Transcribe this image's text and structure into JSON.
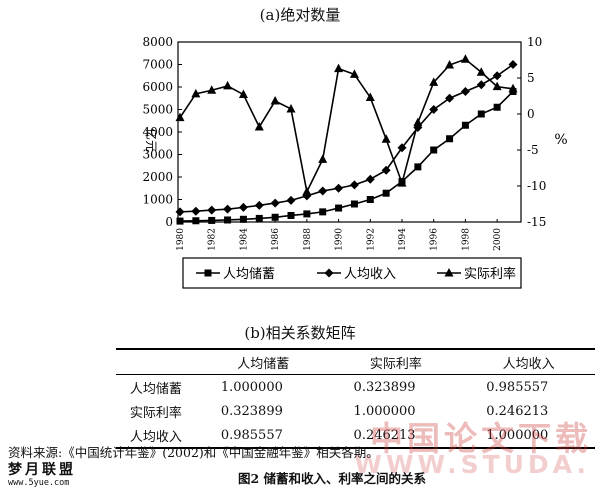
{
  "chart_data": [
    {
      "type": "line",
      "title": "(a)绝对数量",
      "ylabel_left": "亿元",
      "ylabel_right": "%",
      "x": [
        1980,
        1981,
        1982,
        1983,
        1984,
        1985,
        1986,
        1987,
        1988,
        1989,
        1990,
        1991,
        1992,
        1993,
        1994,
        1995,
        1996,
        1997,
        1998,
        1999,
        2000,
        2001
      ],
      "xticks": [
        "1980",
        "1982",
        "1984",
        "1986",
        "1988",
        "1990",
        "1992",
        "1994",
        "1996",
        "1998",
        "2000"
      ],
      "ylim_left": [
        0,
        8000
      ],
      "yticks_left": [
        "0",
        "1000",
        "2000",
        "3000",
        "4000",
        "5000",
        "6000",
        "7000",
        "8000"
      ],
      "ylim_right": [
        -15,
        10
      ],
      "yticks_right": [
        "10",
        "5",
        "0",
        "-5",
        "-10",
        "-15"
      ],
      "series": [
        {
          "name": "人均储蓄",
          "axis": "left",
          "marker": "square",
          "values": [
            40,
            55,
            70,
            90,
            120,
            160,
            210,
            290,
            360,
            450,
            620,
            800,
            1000,
            1280,
            1800,
            2450,
            3200,
            3700,
            4300,
            4800,
            5100,
            5800
          ]
        },
        {
          "name": "人均收入",
          "axis": "left",
          "marker": "diamond",
          "values": [
            450,
            480,
            530,
            570,
            650,
            740,
            840,
            960,
            1160,
            1380,
            1500,
            1650,
            1900,
            2300,
            3300,
            4200,
            5000,
            5500,
            5800,
            6100,
            6500,
            7000
          ]
        },
        {
          "name": "实际利率",
          "axis": "right",
          "marker": "triangle",
          "values": [
            -0.5,
            2.8,
            3.3,
            3.9,
            2.7,
            -1.8,
            1.8,
            0.7,
            -10.8,
            -6.3,
            6.3,
            5.5,
            2.3,
            -3.5,
            -9.6,
            -1.2,
            4.4,
            6.8,
            7.6,
            5.8,
            3.8,
            3.5
          ]
        }
      ],
      "legend_position": "bottom"
    },
    {
      "type": "table",
      "title": "(b)相关系数矩阵",
      "columns": [
        "",
        "人均储蓄",
        "实际利率",
        "人均收入"
      ],
      "rows": [
        [
          "人均储蓄",
          "1.000000",
          "0.323899",
          "0.985557"
        ],
        [
          "实际利率",
          "0.323899",
          "1.000000",
          "0.246213"
        ],
        [
          "人均收入",
          "0.985557",
          "0.246213",
          "1.000000"
        ]
      ]
    }
  ],
  "footer": {
    "source": "资料来源:《中国统计年鉴》(2002)和《中国金融年鉴》相关各期。",
    "caption": "图2   储蓄和收入、利率之间的关系",
    "watermark": "中国论文下载",
    "watermark_en": "WWW.STUDA.",
    "logo_text": "梦月联盟",
    "logo_url": "www.5yue.com"
  }
}
